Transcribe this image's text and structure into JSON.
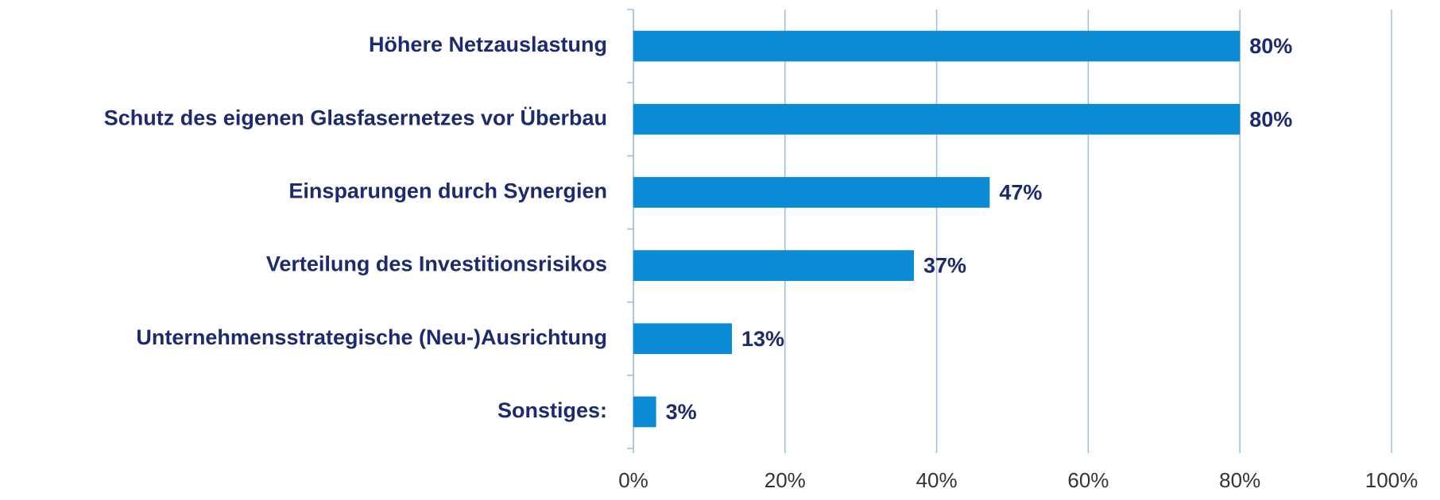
{
  "chart_data": {
    "type": "bar",
    "orientation": "horizontal",
    "categories": [
      "Höhere Netzauslastung",
      "Schutz des eigenen Glasfasernetzes vor Überbau",
      "Einsparungen durch Synergien",
      "Verteilung des Investitionsrisikos",
      "Unternehmensstrategische (Neu-)Ausrichtung",
      "Sonstiges:"
    ],
    "values": [
      80,
      80,
      47,
      37,
      13,
      3
    ],
    "value_labels": [
      "80%",
      "80%",
      "47%",
      "37%",
      "13%",
      "3%"
    ],
    "color": "#0b8bd3",
    "xlim": [
      0,
      100
    ],
    "xticks": [
      {
        "value": 0,
        "label": "0%"
      },
      {
        "value": 20,
        "label": "20%"
      },
      {
        "value": 40,
        "label": "40%"
      },
      {
        "value": 60,
        "label": "60%"
      },
      {
        "value": 80,
        "label": "80%"
      },
      {
        "value": 100,
        "label": "100%"
      }
    ],
    "grid": true
  }
}
